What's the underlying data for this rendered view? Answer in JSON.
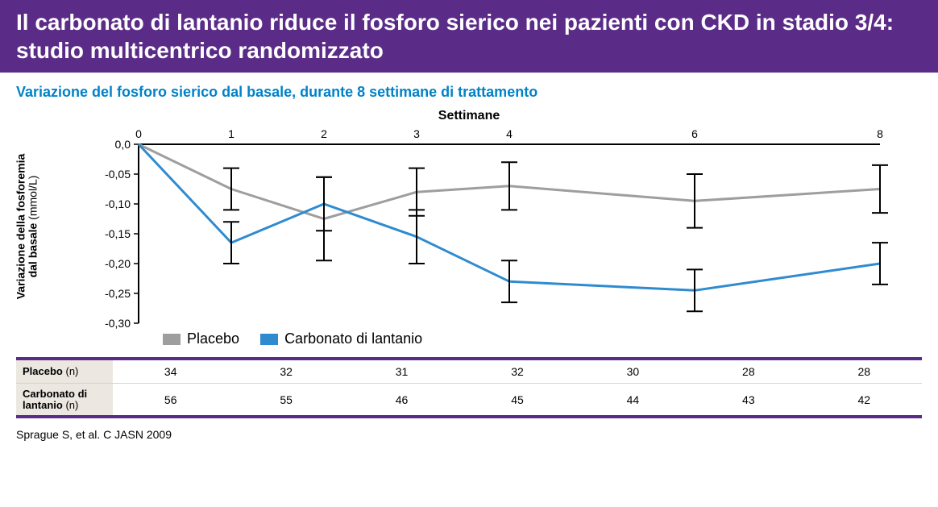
{
  "header": {
    "title": "Il carbonato di lantanio riduce il fosforo sierico nei pazienti con CKD in stadio 3/4: studio multicentrico randomizzato",
    "band_color": "#5b2c87",
    "title_color": "#ffffff",
    "title_fontsize": 28
  },
  "subtitle": {
    "text": "Variazione del fosforo sierico dal basale, durante 8 settimane di trattamento",
    "color": "#0082c8",
    "fontsize": 18
  },
  "chart": {
    "type": "line",
    "x_axis_title": "Settimane",
    "y_axis_title_line1": "Variazione della fosforemia",
    "y_axis_title_line2": "dal basale",
    "y_axis_title_unit": "(mmol/L)",
    "axis_title_fontsize": 16,
    "xticks": [
      0,
      1,
      2,
      3,
      4,
      6,
      8
    ],
    "xtick_labels": [
      "0",
      "1",
      "2",
      "3",
      "4",
      "6",
      "8"
    ],
    "xlim": [
      0,
      8
    ],
    "yticks": [
      0.0,
      -0.05,
      -0.1,
      -0.15,
      -0.2,
      -0.25,
      -0.3
    ],
    "ytick_labels": [
      "0,0",
      "-0,05",
      "-0,10",
      "-0,15",
      "-0,20",
      "-0,25",
      "-0,30"
    ],
    "ylim": [
      -0.3,
      0.0
    ],
    "tick_fontsize": 14,
    "axis_color": "#000000",
    "axis_width": 2,
    "background_color": "#ffffff",
    "grid": false,
    "line_width": 3,
    "errorbar_width": 2,
    "errorbar_cap": 10,
    "errorbar_color": "#000000",
    "series": {
      "placebo": {
        "label": "Placebo",
        "color": "#9e9e9e",
        "x": [
          0,
          1,
          2,
          3,
          4,
          6,
          8
        ],
        "y": [
          0.0,
          -0.075,
          -0.125,
          -0.08,
          -0.07,
          -0.095,
          -0.075
        ],
        "err": [
          null,
          0.035,
          0.07,
          0.04,
          0.04,
          0.045,
          0.04
        ]
      },
      "lanthanum": {
        "label": "Carbonato di lantanio",
        "color": "#2f8bd0",
        "x": [
          0,
          1,
          2,
          3,
          4,
          6,
          8
        ],
        "y": [
          0.0,
          -0.165,
          -0.1,
          -0.155,
          -0.23,
          -0.245,
          -0.2
        ],
        "err": [
          null,
          0.035,
          0.045,
          0.045,
          0.035,
          0.035,
          0.035
        ]
      }
    },
    "legend": {
      "placebo_label": "Placebo",
      "lanthanum_label": "Carbonato di lantanio",
      "fontsize": 18
    }
  },
  "ntable": {
    "border_color": "#5b2c87",
    "row_header_bg": "#ece7e1",
    "fontsize": 14,
    "rows": [
      {
        "label": "Placebo",
        "paren": "(n)",
        "values": [
          "34",
          "32",
          "31",
          "32",
          "30",
          "28",
          "28"
        ]
      },
      {
        "label": "Carbonato di lantanio",
        "paren": "(n)",
        "values": [
          "56",
          "55",
          "46",
          "45",
          "44",
          "43",
          "42"
        ]
      }
    ]
  },
  "citation": {
    "text": "Sprague S, et al. C JASN 2009",
    "fontsize": 14
  }
}
